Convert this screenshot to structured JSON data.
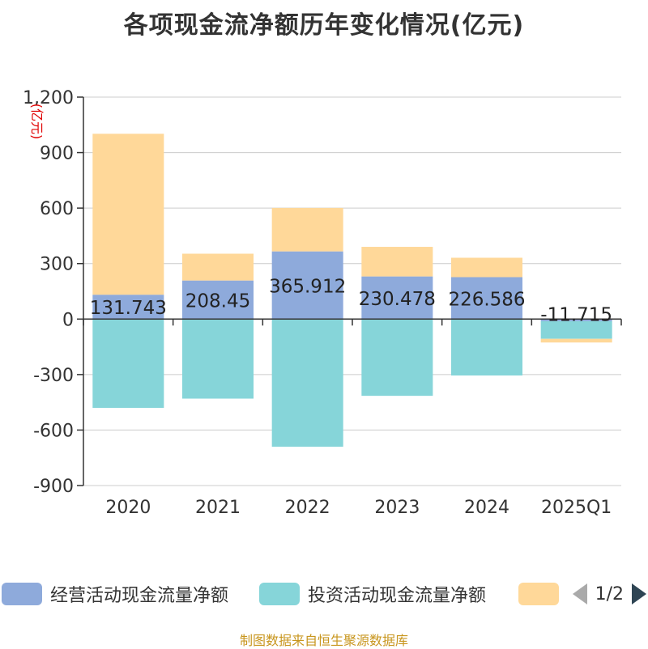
{
  "title": "各项现金流净额历年变化情况(亿元)",
  "source": "制图数据来自恒生聚源数据库",
  "pager": {
    "text": "1/2"
  },
  "colors": {
    "operating": "#8eaadb",
    "investing": "#86d5d9",
    "financing": "#ffd899",
    "axis_unit": "#e00000",
    "source": "#c8961e"
  },
  "chart_data": {
    "type": "bar",
    "stacked": true,
    "title": "各项现金流净额历年变化情况(亿元)",
    "ylabel": "(亿元)",
    "ylim": [
      -900,
      1200
    ],
    "yticks": [
      -900,
      -600,
      -300,
      0,
      300,
      600,
      900,
      1200
    ],
    "ytick_labels": [
      "-900",
      "-600",
      "-300",
      "0",
      "300",
      "600",
      "900",
      "1,200"
    ],
    "categories": [
      "2020",
      "2021",
      "2022",
      "2023",
      "2024",
      "2025Q1"
    ],
    "grid": true,
    "legend_position": "bottom",
    "series": [
      {
        "name": "经营活动现金流量净额",
        "color": "#8eaadb",
        "values": [
          131.743,
          208.45,
          365.912,
          230.478,
          226.586,
          -11.715
        ],
        "labels": [
          "131.743",
          "208.45",
          "365.912",
          "230.478",
          "226.586",
          "-11.715"
        ]
      },
      {
        "name": "投资活动现金流量净额",
        "color": "#86d5d9",
        "values": [
          -480,
          -430,
          -690,
          -415,
          -305,
          -95
        ]
      },
      {
        "name": "",
        "color": "#ffd899",
        "values": [
          870,
          145,
          235,
          160,
          105,
          -20
        ]
      }
    ]
  }
}
